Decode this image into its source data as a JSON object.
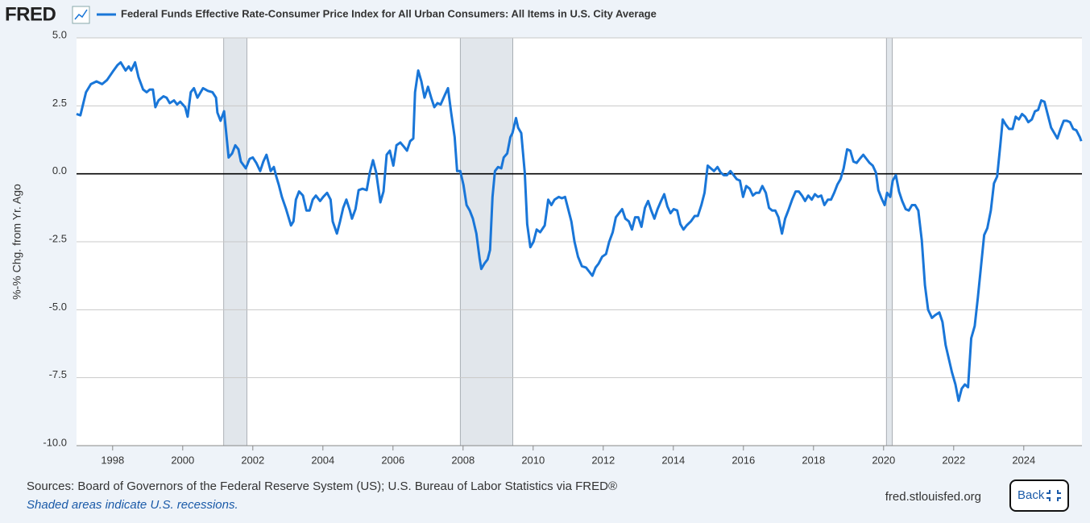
{
  "header": {
    "logo": "FRED"
  },
  "chart_data": {
    "type": "line",
    "title": "Federal Funds Effective Rate-Consumer Price Index for All Urban Consumers: All Items in U.S. City Average",
    "y_label": "%-% Chg. from Yr. Ago",
    "xlim": [
      1996.97,
      2025.66
    ],
    "ylim": [
      -10,
      5
    ],
    "xticks": [
      1998,
      2000,
      2002,
      2004,
      2006,
      2008,
      2010,
      2012,
      2014,
      2016,
      2018,
      2020,
      2022,
      2024
    ],
    "yticks": [
      {
        "value": 5,
        "label": "5.0"
      },
      2.5,
      {
        "value": 0,
        "label": "0.0"
      },
      -2.5,
      {
        "value": -5,
        "label": "-5.0"
      },
      -7.5,
      {
        "value": -10,
        "label": "-10.0"
      }
    ],
    "grid": true,
    "recessions": [
      [
        2001.17,
        2001.83
      ],
      [
        2007.92,
        2009.42
      ],
      [
        2020.08,
        2020.25
      ]
    ],
    "x": [
      1996.97,
      1997.08,
      1997.24,
      1997.38,
      1997.54,
      1997.7,
      1997.84,
      1998.0,
      1998.14,
      1998.23,
      1998.3,
      1998.37,
      1998.46,
      1998.53,
      1998.64,
      1998.74,
      1998.87,
      1998.97,
      1999.06,
      1999.15,
      1999.22,
      1999.31,
      1999.45,
      1999.54,
      1999.63,
      1999.75,
      1999.84,
      1999.93,
      2000.07,
      2000.14,
      2000.23,
      2000.32,
      2000.42,
      2000.58,
      2000.72,
      2000.85,
      2000.95,
      2000.99,
      2001.08,
      2001.18,
      2001.31,
      2001.41,
      2001.5,
      2001.59,
      2001.66,
      2001.8,
      2001.91,
      2002.0,
      2002.1,
      2002.21,
      2002.3,
      2002.39,
      2002.51,
      2002.6,
      2002.67,
      2002.74,
      2002.83,
      2002.95,
      2003.09,
      2003.16,
      2003.23,
      2003.32,
      2003.43,
      2003.53,
      2003.62,
      2003.71,
      2003.8,
      2003.92,
      2004.01,
      2004.12,
      2004.22,
      2004.28,
      2004.4,
      2004.49,
      2004.58,
      2004.67,
      2004.77,
      2004.83,
      2004.93,
      2005.02,
      2005.13,
      2005.25,
      2005.34,
      2005.43,
      2005.52,
      2005.64,
      2005.73,
      2005.82,
      2005.91,
      2006.01,
      2006.1,
      2006.21,
      2006.31,
      2006.4,
      2006.49,
      2006.58,
      2006.63,
      2006.72,
      2006.81,
      2006.9,
      2007.0,
      2007.09,
      2007.18,
      2007.27,
      2007.36,
      2007.48,
      2007.57,
      2007.66,
      2007.76,
      2007.83,
      2007.92,
      2008.01,
      2008.1,
      2008.19,
      2008.28,
      2008.38,
      2008.47,
      2008.52,
      2008.61,
      2008.7,
      2008.77,
      2008.84,
      2008.91,
      2009.0,
      2009.09,
      2009.16,
      2009.26,
      2009.35,
      2009.41,
      2009.51,
      2009.57,
      2009.66,
      2009.76,
      2009.83,
      2009.92,
      2010.01,
      2010.1,
      2010.2,
      2010.33,
      2010.43,
      2010.52,
      2010.61,
      2010.73,
      2010.82,
      2010.91,
      2011.0,
      2011.09,
      2011.18,
      2011.28,
      2011.39,
      2011.51,
      2011.6,
      2011.69,
      2011.78,
      2011.87,
      2011.97,
      2012.08,
      2012.17,
      2012.27,
      2012.36,
      2012.45,
      2012.54,
      2012.63,
      2012.73,
      2012.82,
      2012.91,
      2013.0,
      2013.09,
      2013.19,
      2013.28,
      2013.37,
      2013.46,
      2013.55,
      2013.65,
      2013.74,
      2013.83,
      2013.92,
      2014.01,
      2014.11,
      2014.2,
      2014.29,
      2014.38,
      2014.5,
      2014.61,
      2014.7,
      2014.8,
      2014.89,
      2014.98,
      2015.07,
      2015.16,
      2015.26,
      2015.35,
      2015.44,
      2015.53,
      2015.63,
      2015.72,
      2015.81,
      2015.9,
      2015.99,
      2016.08,
      2016.18,
      2016.27,
      2016.36,
      2016.45,
      2016.54,
      2016.64,
      2016.73,
      2016.82,
      2016.91,
      2017.0,
      2017.1,
      2017.19,
      2017.28,
      2017.39,
      2017.49,
      2017.58,
      2017.67,
      2017.76,
      2017.85,
      2017.95,
      2018.04,
      2018.13,
      2018.22,
      2018.31,
      2018.41,
      2018.5,
      2018.59,
      2018.68,
      2018.77,
      2018.86,
      2018.96,
      2019.05,
      2019.14,
      2019.23,
      2019.32,
      2019.42,
      2019.51,
      2019.6,
      2019.69,
      2019.78,
      2019.85,
      2019.94,
      2020.03,
      2020.1,
      2020.19,
      2020.26,
      2020.35,
      2020.44,
      2020.53,
      2020.63,
      2020.72,
      2020.81,
      2020.9,
      2020.99,
      2021.09,
      2021.18,
      2021.27,
      2021.38,
      2021.47,
      2021.59,
      2021.68,
      2021.77,
      2021.86,
      2021.95,
      2022.05,
      2022.14,
      2022.23,
      2022.32,
      2022.41,
      2022.5,
      2022.6,
      2022.69,
      2022.78,
      2022.87,
      2022.96,
      2023.06,
      2023.15,
      2023.24,
      2023.33,
      2023.4,
      2023.49,
      2023.58,
      2023.68,
      2023.77,
      2023.86,
      2023.95,
      2024.04,
      2024.13,
      2024.23,
      2024.32,
      2024.41,
      2024.5,
      2024.59,
      2024.68,
      2024.78,
      2024.87,
      2024.96,
      2025.05,
      2025.14,
      2025.23,
      2025.32,
      2025.41,
      2025.5,
      2025.6,
      2025.64
    ],
    "series": [
      {
        "name": "Federal Funds Effective Rate-Consumer Price Index for All Urban Consumers: All Items in U.S. City Average",
        "color": "#1976d8",
        "values": [
          2.2,
          2.15,
          3.0,
          3.3,
          3.4,
          3.3,
          3.45,
          3.75,
          4.0,
          4.1,
          3.95,
          3.8,
          3.95,
          3.8,
          4.1,
          3.55,
          3.1,
          3.0,
          3.1,
          3.1,
          2.45,
          2.7,
          2.85,
          2.8,
          2.6,
          2.7,
          2.55,
          2.65,
          2.45,
          2.1,
          3.0,
          3.15,
          2.8,
          3.15,
          3.05,
          3.0,
          2.8,
          2.25,
          1.95,
          2.3,
          0.6,
          0.75,
          1.05,
          0.9,
          0.45,
          0.2,
          0.55,
          0.6,
          0.4,
          0.1,
          0.45,
          0.7,
          0.1,
          0.25,
          -0.1,
          -0.4,
          -0.85,
          -1.3,
          -1.9,
          -1.75,
          -0.95,
          -0.65,
          -0.8,
          -1.35,
          -1.35,
          -0.95,
          -0.8,
          -1.0,
          -0.85,
          -0.7,
          -0.95,
          -1.75,
          -2.2,
          -1.75,
          -1.25,
          -0.95,
          -1.35,
          -1.65,
          -1.3,
          -0.6,
          -0.55,
          -0.6,
          0.05,
          0.5,
          0.05,
          -1.05,
          -0.65,
          0.7,
          0.85,
          0.3,
          1.05,
          1.15,
          1.0,
          0.85,
          1.2,
          1.3,
          3.0,
          3.8,
          3.4,
          2.8,
          3.2,
          2.8,
          2.45,
          2.6,
          2.55,
          2.9,
          3.15,
          2.25,
          1.35,
          0.1,
          0.1,
          -0.4,
          -1.15,
          -1.35,
          -1.65,
          -2.2,
          -3.1,
          -3.5,
          -3.3,
          -3.15,
          -2.8,
          -0.85,
          0.1,
          0.25,
          0.2,
          0.6,
          0.75,
          1.35,
          1.5,
          2.05,
          1.7,
          1.5,
          0.05,
          -1.85,
          -2.7,
          -2.5,
          -2.05,
          -2.15,
          -1.9,
          -0.95,
          -1.15,
          -0.95,
          -0.85,
          -0.9,
          -0.85,
          -1.3,
          -1.75,
          -2.5,
          -3.05,
          -3.4,
          -3.45,
          -3.6,
          -3.75,
          -3.45,
          -3.3,
          -3.05,
          -2.95,
          -2.5,
          -2.15,
          -1.6,
          -1.45,
          -1.3,
          -1.65,
          -1.75,
          -2.05,
          -1.6,
          -1.6,
          -1.95,
          -1.25,
          -1.0,
          -1.35,
          -1.65,
          -1.3,
          -1.0,
          -0.75,
          -1.2,
          -1.45,
          -1.3,
          -1.35,
          -1.85,
          -2.05,
          -1.9,
          -1.75,
          -1.55,
          -1.55,
          -1.15,
          -0.7,
          0.3,
          0.2,
          0.1,
          0.25,
          0.05,
          -0.05,
          -0.05,
          0.1,
          -0.05,
          -0.2,
          -0.25,
          -0.85,
          -0.45,
          -0.55,
          -0.8,
          -0.7,
          -0.7,
          -0.45,
          -0.7,
          -1.25,
          -1.35,
          -1.35,
          -1.6,
          -2.2,
          -1.65,
          -1.35,
          -0.95,
          -0.65,
          -0.65,
          -0.8,
          -1.0,
          -0.8,
          -0.95,
          -0.75,
          -0.85,
          -0.8,
          -1.15,
          -0.95,
          -0.95,
          -0.7,
          -0.4,
          -0.2,
          0.2,
          0.9,
          0.85,
          0.45,
          0.4,
          0.55,
          0.7,
          0.55,
          0.4,
          0.3,
          0.05,
          -0.6,
          -0.9,
          -1.15,
          -0.7,
          -0.85,
          -0.25,
          -0.05,
          -0.65,
          -1.0,
          -1.3,
          -1.35,
          -1.15,
          -1.15,
          -1.35,
          -2.45,
          -4.1,
          -5.0,
          -5.3,
          -5.2,
          -5.1,
          -5.45,
          -6.3,
          -6.8,
          -7.3,
          -7.75,
          -8.35,
          -7.9,
          -7.75,
          -7.85,
          -6.05,
          -5.6,
          -4.55,
          -3.4,
          -2.25,
          -2.0,
          -1.35,
          -0.35,
          -0.1,
          1.05,
          2.0,
          1.8,
          1.65,
          1.65,
          2.1,
          2.0,
          2.2,
          2.1,
          1.9,
          2.0,
          2.3,
          2.35,
          2.7,
          2.65,
          2.2,
          1.7,
          1.5,
          1.3,
          1.65,
          1.95,
          1.95,
          1.9,
          1.65,
          1.6,
          1.35,
          1.2
        ]
      }
    ]
  },
  "footer": {
    "sources": "Sources: Board of Governors of the Federal Reserve System (US); U.S. Bureau of Labor Statistics via FRED®",
    "note": "Shaded areas indicate U.S. recessions.",
    "url": "fred.stlouisfed.org",
    "button": "Back"
  }
}
